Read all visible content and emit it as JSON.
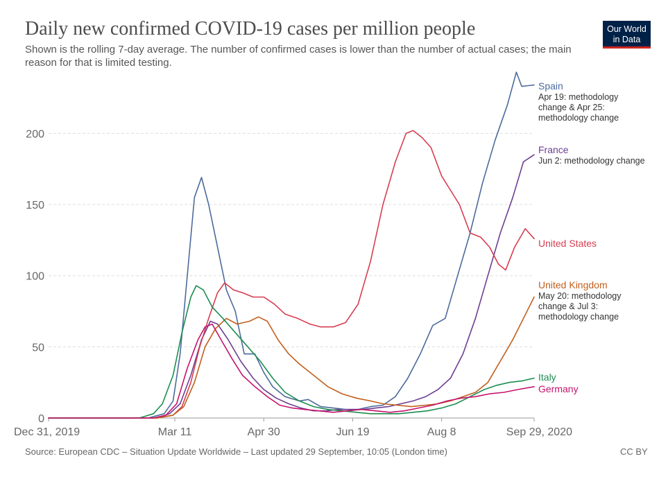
{
  "header": {
    "title": "Daily new confirmed COVID-19 cases per million people",
    "subtitle": "Shown is the rolling 7-day average. The number of confirmed cases is lower than the number of actual cases; the main reason for that is limited testing."
  },
  "logo": {
    "line1": "Our World",
    "line2": "in Data",
    "background": "#002147",
    "accent": "#ce261e"
  },
  "footer": {
    "source": "Source: European CDC – Situation Update Worldwide – Last updated 29 September, 10:05 (London time)",
    "license": "CC BY"
  },
  "chart_data": {
    "type": "line",
    "x_unit": "date",
    "xlim": [
      "2019-12-31",
      "2020-09-29"
    ],
    "ylim": [
      0,
      245
    ],
    "grid": true,
    "y_ticks": [
      0,
      50,
      100,
      150,
      200
    ],
    "x_ticks": [
      {
        "date": "2019-12-31",
        "label": "Dec 31, 2019"
      },
      {
        "date": "2020-03-11",
        "label": "Mar 11"
      },
      {
        "date": "2020-04-30",
        "label": "Apr 30"
      },
      {
        "date": "2020-06-19",
        "label": "Jun 19"
      },
      {
        "date": "2020-08-08",
        "label": "Aug 8"
      },
      {
        "date": "2020-09-29",
        "label": "Sep 29, 2020"
      }
    ],
    "series": [
      {
        "name": "Spain",
        "color": "#4c6a9c",
        "annotation": "Apr 19: methodology change & Apr 25: methodology change",
        "points": [
          [
            "2019-12-31",
            0
          ],
          [
            "2020-02-25",
            0
          ],
          [
            "2020-03-05",
            3
          ],
          [
            "2020-03-10",
            12
          ],
          [
            "2020-03-14",
            45
          ],
          [
            "2020-03-18",
            100
          ],
          [
            "2020-03-22",
            155
          ],
          [
            "2020-03-26",
            169
          ],
          [
            "2020-03-30",
            150
          ],
          [
            "2020-04-04",
            120
          ],
          [
            "2020-04-09",
            90
          ],
          [
            "2020-04-14",
            75
          ],
          [
            "2020-04-19",
            45
          ],
          [
            "2020-04-25",
            45
          ],
          [
            "2020-04-30",
            32
          ],
          [
            "2020-05-05",
            22
          ],
          [
            "2020-05-12",
            15
          ],
          [
            "2020-05-20",
            12
          ],
          [
            "2020-05-25",
            13
          ],
          [
            "2020-06-01",
            8
          ],
          [
            "2020-06-08",
            7
          ],
          [
            "2020-06-15",
            6
          ],
          [
            "2020-06-22",
            6
          ],
          [
            "2020-06-29",
            8
          ],
          [
            "2020-07-06",
            9
          ],
          [
            "2020-07-13",
            15
          ],
          [
            "2020-07-20",
            28
          ],
          [
            "2020-07-27",
            45
          ],
          [
            "2020-08-03",
            65
          ],
          [
            "2020-08-10",
            70
          ],
          [
            "2020-08-17",
            100
          ],
          [
            "2020-08-24",
            130
          ],
          [
            "2020-08-31",
            165
          ],
          [
            "2020-09-07",
            195
          ],
          [
            "2020-09-14",
            220
          ],
          [
            "2020-09-19",
            243
          ],
          [
            "2020-09-22",
            233
          ],
          [
            "2020-09-29",
            234
          ]
        ]
      },
      {
        "name": "France",
        "color": "#6d3e91",
        "annotation": "Jun 2: methodology change",
        "points": [
          [
            "2019-12-31",
            0
          ],
          [
            "2020-03-01",
            0
          ],
          [
            "2020-03-08",
            3
          ],
          [
            "2020-03-14",
            10
          ],
          [
            "2020-03-20",
            30
          ],
          [
            "2020-03-26",
            55
          ],
          [
            "2020-03-31",
            68
          ],
          [
            "2020-04-04",
            66
          ],
          [
            "2020-04-10",
            55
          ],
          [
            "2020-04-17",
            40
          ],
          [
            "2020-04-24",
            28
          ],
          [
            "2020-04-30",
            20
          ],
          [
            "2020-05-07",
            14
          ],
          [
            "2020-05-14",
            10
          ],
          [
            "2020-05-21",
            7
          ],
          [
            "2020-05-28",
            5
          ],
          [
            "2020-06-04",
            5
          ],
          [
            "2020-06-11",
            6
          ],
          [
            "2020-06-18",
            6
          ],
          [
            "2020-06-25",
            6
          ],
          [
            "2020-07-02",
            7
          ],
          [
            "2020-07-09",
            8
          ],
          [
            "2020-07-16",
            10
          ],
          [
            "2020-07-23",
            12
          ],
          [
            "2020-07-30",
            15
          ],
          [
            "2020-08-06",
            20
          ],
          [
            "2020-08-13",
            28
          ],
          [
            "2020-08-20",
            45
          ],
          [
            "2020-08-27",
            70
          ],
          [
            "2020-09-03",
            100
          ],
          [
            "2020-09-10",
            130
          ],
          [
            "2020-09-17",
            155
          ],
          [
            "2020-09-23",
            180
          ],
          [
            "2020-09-29",
            185
          ]
        ]
      },
      {
        "name": "United States",
        "color": "#d73c50",
        "annotation": "",
        "points": [
          [
            "2019-12-31",
            0
          ],
          [
            "2020-03-01",
            0
          ],
          [
            "2020-03-10",
            2
          ],
          [
            "2020-03-15",
            8
          ],
          [
            "2020-03-20",
            25
          ],
          [
            "2020-03-25",
            50
          ],
          [
            "2020-03-30",
            70
          ],
          [
            "2020-04-04",
            88
          ],
          [
            "2020-04-08",
            95
          ],
          [
            "2020-04-13",
            90
          ],
          [
            "2020-04-18",
            88
          ],
          [
            "2020-04-24",
            85
          ],
          [
            "2020-04-30",
            85
          ],
          [
            "2020-05-06",
            80
          ],
          [
            "2020-05-12",
            73
          ],
          [
            "2020-05-19",
            70
          ],
          [
            "2020-05-26",
            66
          ],
          [
            "2020-06-01",
            64
          ],
          [
            "2020-06-08",
            64
          ],
          [
            "2020-06-15",
            67
          ],
          [
            "2020-06-22",
            80
          ],
          [
            "2020-06-29",
            110
          ],
          [
            "2020-07-06",
            150
          ],
          [
            "2020-07-13",
            180
          ],
          [
            "2020-07-19",
            200
          ],
          [
            "2020-07-23",
            202
          ],
          [
            "2020-07-28",
            197
          ],
          [
            "2020-08-02",
            190
          ],
          [
            "2020-08-08",
            170
          ],
          [
            "2020-08-13",
            160
          ],
          [
            "2020-08-18",
            150
          ],
          [
            "2020-08-24",
            130
          ],
          [
            "2020-08-30",
            127
          ],
          [
            "2020-09-04",
            120
          ],
          [
            "2020-09-09",
            108
          ],
          [
            "2020-09-13",
            104
          ],
          [
            "2020-09-18",
            120
          ],
          [
            "2020-09-24",
            133
          ],
          [
            "2020-09-29",
            126
          ]
        ]
      },
      {
        "name": "United Kingdom",
        "color": "#c15e1b",
        "annotation": "May 20: methodology change & Jul 3: methodology change",
        "points": [
          [
            "2019-12-31",
            0
          ],
          [
            "2020-03-01",
            0
          ],
          [
            "2020-03-10",
            2
          ],
          [
            "2020-03-16",
            8
          ],
          [
            "2020-03-22",
            25
          ],
          [
            "2020-03-28",
            50
          ],
          [
            "2020-04-03",
            63
          ],
          [
            "2020-04-09",
            70
          ],
          [
            "2020-04-15",
            66
          ],
          [
            "2020-04-22",
            68
          ],
          [
            "2020-04-27",
            71
          ],
          [
            "2020-05-02",
            68
          ],
          [
            "2020-05-08",
            55
          ],
          [
            "2020-05-14",
            45
          ],
          [
            "2020-05-20",
            38
          ],
          [
            "2020-05-28",
            30
          ],
          [
            "2020-06-05",
            22
          ],
          [
            "2020-06-13",
            17
          ],
          [
            "2020-06-21",
            14
          ],
          [
            "2020-06-29",
            12
          ],
          [
            "2020-07-06",
            10
          ],
          [
            "2020-07-14",
            9
          ],
          [
            "2020-07-22",
            8
          ],
          [
            "2020-07-30",
            9
          ],
          [
            "2020-08-06",
            10
          ],
          [
            "2020-08-13",
            12
          ],
          [
            "2020-08-20",
            15
          ],
          [
            "2020-08-27",
            18
          ],
          [
            "2020-09-03",
            25
          ],
          [
            "2020-09-10",
            40
          ],
          [
            "2020-09-17",
            55
          ],
          [
            "2020-09-23",
            70
          ],
          [
            "2020-09-29",
            85
          ]
        ]
      },
      {
        "name": "Italy",
        "color": "#1c8d50",
        "annotation": "",
        "points": [
          [
            "2019-12-31",
            0
          ],
          [
            "2020-02-20",
            0
          ],
          [
            "2020-02-28",
            3
          ],
          [
            "2020-03-04",
            10
          ],
          [
            "2020-03-10",
            30
          ],
          [
            "2020-03-15",
            60
          ],
          [
            "2020-03-20",
            85
          ],
          [
            "2020-03-23",
            93
          ],
          [
            "2020-03-27",
            90
          ],
          [
            "2020-04-01",
            78
          ],
          [
            "2020-04-07",
            70
          ],
          [
            "2020-04-14",
            60
          ],
          [
            "2020-04-21",
            50
          ],
          [
            "2020-04-28",
            40
          ],
          [
            "2020-05-05",
            28
          ],
          [
            "2020-05-12",
            18
          ],
          [
            "2020-05-20",
            12
          ],
          [
            "2020-05-28",
            8
          ],
          [
            "2020-06-05",
            6
          ],
          [
            "2020-06-13",
            5
          ],
          [
            "2020-06-21",
            4
          ],
          [
            "2020-06-29",
            3
          ],
          [
            "2020-07-07",
            3
          ],
          [
            "2020-07-15",
            3
          ],
          [
            "2020-07-23",
            4
          ],
          [
            "2020-07-31",
            5
          ],
          [
            "2020-08-08",
            7
          ],
          [
            "2020-08-16",
            10
          ],
          [
            "2020-08-24",
            15
          ],
          [
            "2020-09-01",
            20
          ],
          [
            "2020-09-08",
            23
          ],
          [
            "2020-09-15",
            25
          ],
          [
            "2020-09-22",
            26
          ],
          [
            "2020-09-29",
            28
          ]
        ]
      },
      {
        "name": "Germany",
        "color": "#c4136b",
        "annotation": "",
        "points": [
          [
            "2019-12-31",
            0
          ],
          [
            "2020-02-28",
            0
          ],
          [
            "2020-03-06",
            2
          ],
          [
            "2020-03-12",
            10
          ],
          [
            "2020-03-18",
            35
          ],
          [
            "2020-03-24",
            55
          ],
          [
            "2020-03-28",
            64
          ],
          [
            "2020-04-01",
            66
          ],
          [
            "2020-04-06",
            55
          ],
          [
            "2020-04-12",
            42
          ],
          [
            "2020-04-18",
            30
          ],
          [
            "2020-04-25",
            22
          ],
          [
            "2020-05-02",
            15
          ],
          [
            "2020-05-09",
            9
          ],
          [
            "2020-05-16",
            7
          ],
          [
            "2020-05-23",
            6
          ],
          [
            "2020-05-31",
            5
          ],
          [
            "2020-06-08",
            4
          ],
          [
            "2020-06-16",
            5
          ],
          [
            "2020-06-24",
            6
          ],
          [
            "2020-07-02",
            5
          ],
          [
            "2020-07-10",
            4
          ],
          [
            "2020-07-18",
            5
          ],
          [
            "2020-07-26",
            7
          ],
          [
            "2020-08-03",
            9
          ],
          [
            "2020-08-11",
            12
          ],
          [
            "2020-08-19",
            14
          ],
          [
            "2020-08-27",
            15
          ],
          [
            "2020-09-04",
            17
          ],
          [
            "2020-09-12",
            18
          ],
          [
            "2020-09-20",
            20
          ],
          [
            "2020-09-29",
            22
          ]
        ]
      }
    ]
  }
}
